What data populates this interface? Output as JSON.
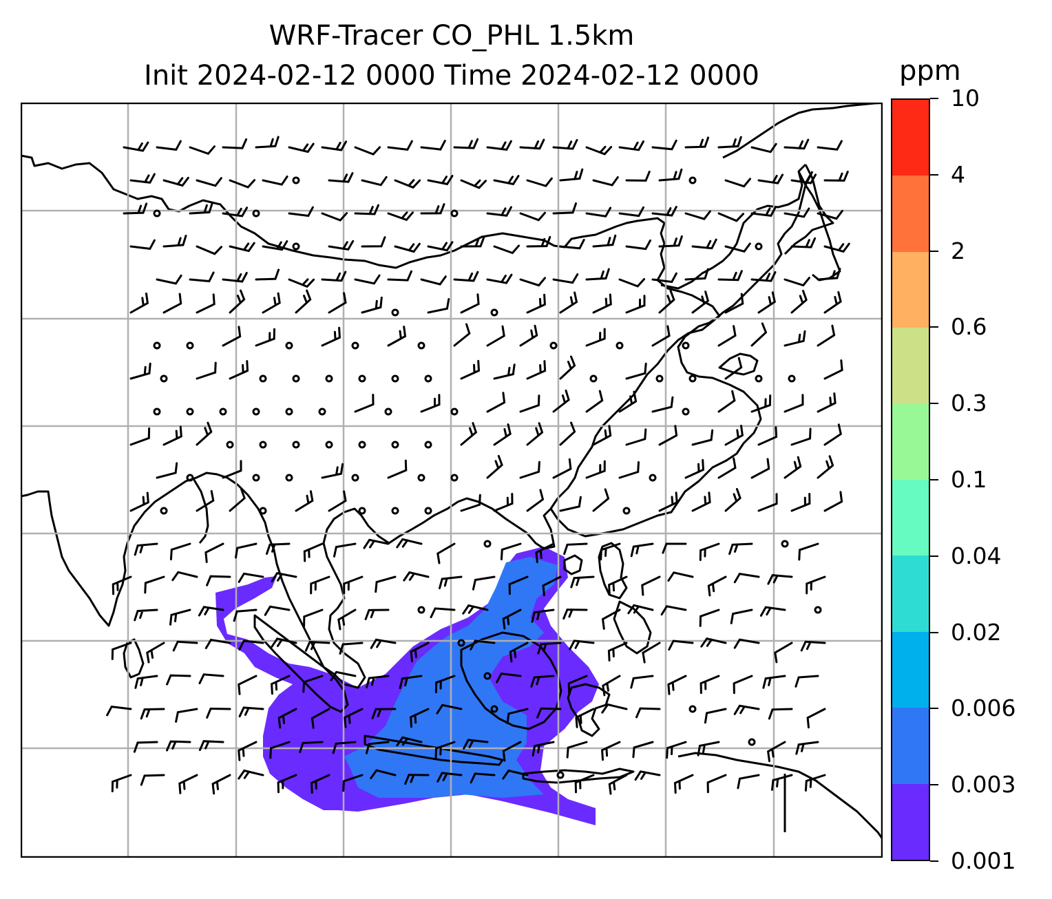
{
  "title": {
    "line1": "WRF-Tracer CO_PHL 1.5km",
    "line2": "Init 2024-02-12 0000 Time 2024-02-12 0000"
  },
  "colorbar": {
    "unit_label": "ppm",
    "levels": [
      "0.001",
      "0.003",
      "0.006",
      "0.02",
      "0.04",
      "0.1",
      "0.3",
      "0.6",
      "2",
      "4",
      "10"
    ],
    "colors": [
      "#6a2bff",
      "#3077f5",
      "#00b0ec",
      "#2fdcd3",
      "#66fbc0",
      "#99f896",
      "#cce088",
      "#ffb060",
      "#ff7239",
      "#ff2a15"
    ]
  },
  "map": {
    "gridlines": true,
    "plume_colors": {
      "low": "#6a2bff",
      "mid": "#3077f5"
    },
    "calm_symbol": "circle",
    "barb_symbol": "wind-barb"
  }
}
